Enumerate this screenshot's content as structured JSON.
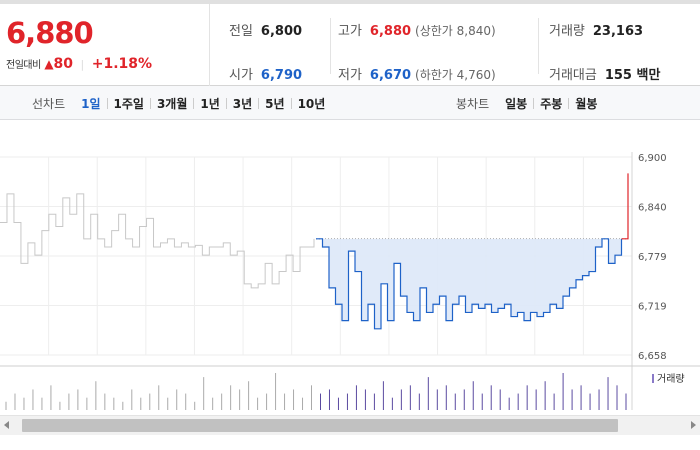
{
  "summary": {
    "current_price": "6,880",
    "change_label": "전일대비",
    "change_icon": "up-triangle-icon",
    "change_value": "80",
    "change_pct": "+1.18%",
    "prev_close_label": "전일",
    "prev_close": "6,800",
    "high_label": "고가",
    "high": "6,880",
    "upper_limit": "(상한가 8,840)",
    "volume_label": "거래량",
    "volume": "23,163",
    "open_label": "시가",
    "open": "6,790",
    "low_label": "저가",
    "low": "6,670",
    "lower_limit": "(하한가 4,760)",
    "amount_label": "거래대금",
    "amount": "155 백만"
  },
  "tabs": {
    "line_chart_label": "선차트",
    "line_items": [
      "1일",
      "1주일",
      "3개월",
      "1년",
      "3년",
      "5년",
      "10년"
    ],
    "line_active": 0,
    "candle_chart_label": "봉차트",
    "candle_items": [
      "일봉",
      "주봉",
      "월봉"
    ]
  },
  "colors": {
    "up": "#e0242a",
    "down": "#1e62c8",
    "prev_day_line": "#c8c8c8",
    "fill": "#dde8f8"
  },
  "chart_data": {
    "type": "line",
    "y_ticks": [
      "6,900",
      "6,840",
      "6,779",
      "6,719",
      "6,658"
    ],
    "ylim": [
      6658,
      6900
    ],
    "reference_value": 6800,
    "volume_legend": "거래량",
    "series": [
      {
        "values": [
          6820,
          6855,
          6820,
          6770,
          6795,
          6780,
          6810,
          6830,
          6815,
          6850,
          6830,
          6855,
          6800,
          6830,
          6800,
          6790,
          6810,
          6830,
          6800,
          6790,
          6815,
          6825,
          6790,
          6795,
          6800,
          6790,
          6795,
          6790,
          6792,
          6780,
          6790,
          6790,
          6795,
          6780,
          6785,
          6745,
          6740,
          6745,
          6770,
          6745,
          6760,
          6780,
          6760,
          6790,
          6790,
          6800
        ]
      },
      {
        "values": [
          6800,
          6790,
          6740,
          6720,
          6700,
          6785,
          6760,
          6700,
          6720,
          6690,
          6745,
          6700,
          6770,
          6730,
          6710,
          6700,
          6740,
          6710,
          6720,
          6730,
          6700,
          6720,
          6730,
          6710,
          6720,
          6715,
          6720,
          6710,
          6715,
          6720,
          6705,
          6710,
          6700,
          6710,
          6705,
          6710,
          6720,
          6715,
          6730,
          6740,
          6750,
          6755,
          6760,
          6790,
          6800,
          6770,
          6780,
          6800,
          6880
        ]
      }
    ],
    "volume": [
      2,
      4,
      3,
      5,
      3,
      6,
      2,
      4,
      5,
      3,
      7,
      4,
      3,
      2,
      5,
      3,
      4,
      6,
      3,
      5,
      4,
      2,
      8,
      3,
      4,
      6,
      5,
      7,
      3,
      4,
      9,
      4,
      5,
      3,
      6,
      4,
      5,
      3,
      4,
      6,
      5,
      4,
      7,
      3,
      5,
      6,
      4,
      8,
      5,
      6,
      4,
      5,
      7,
      4,
      6,
      5,
      3,
      4,
      6,
      5,
      7,
      4,
      9,
      5,
      6,
      4,
      5,
      8,
      6,
      4
    ]
  }
}
